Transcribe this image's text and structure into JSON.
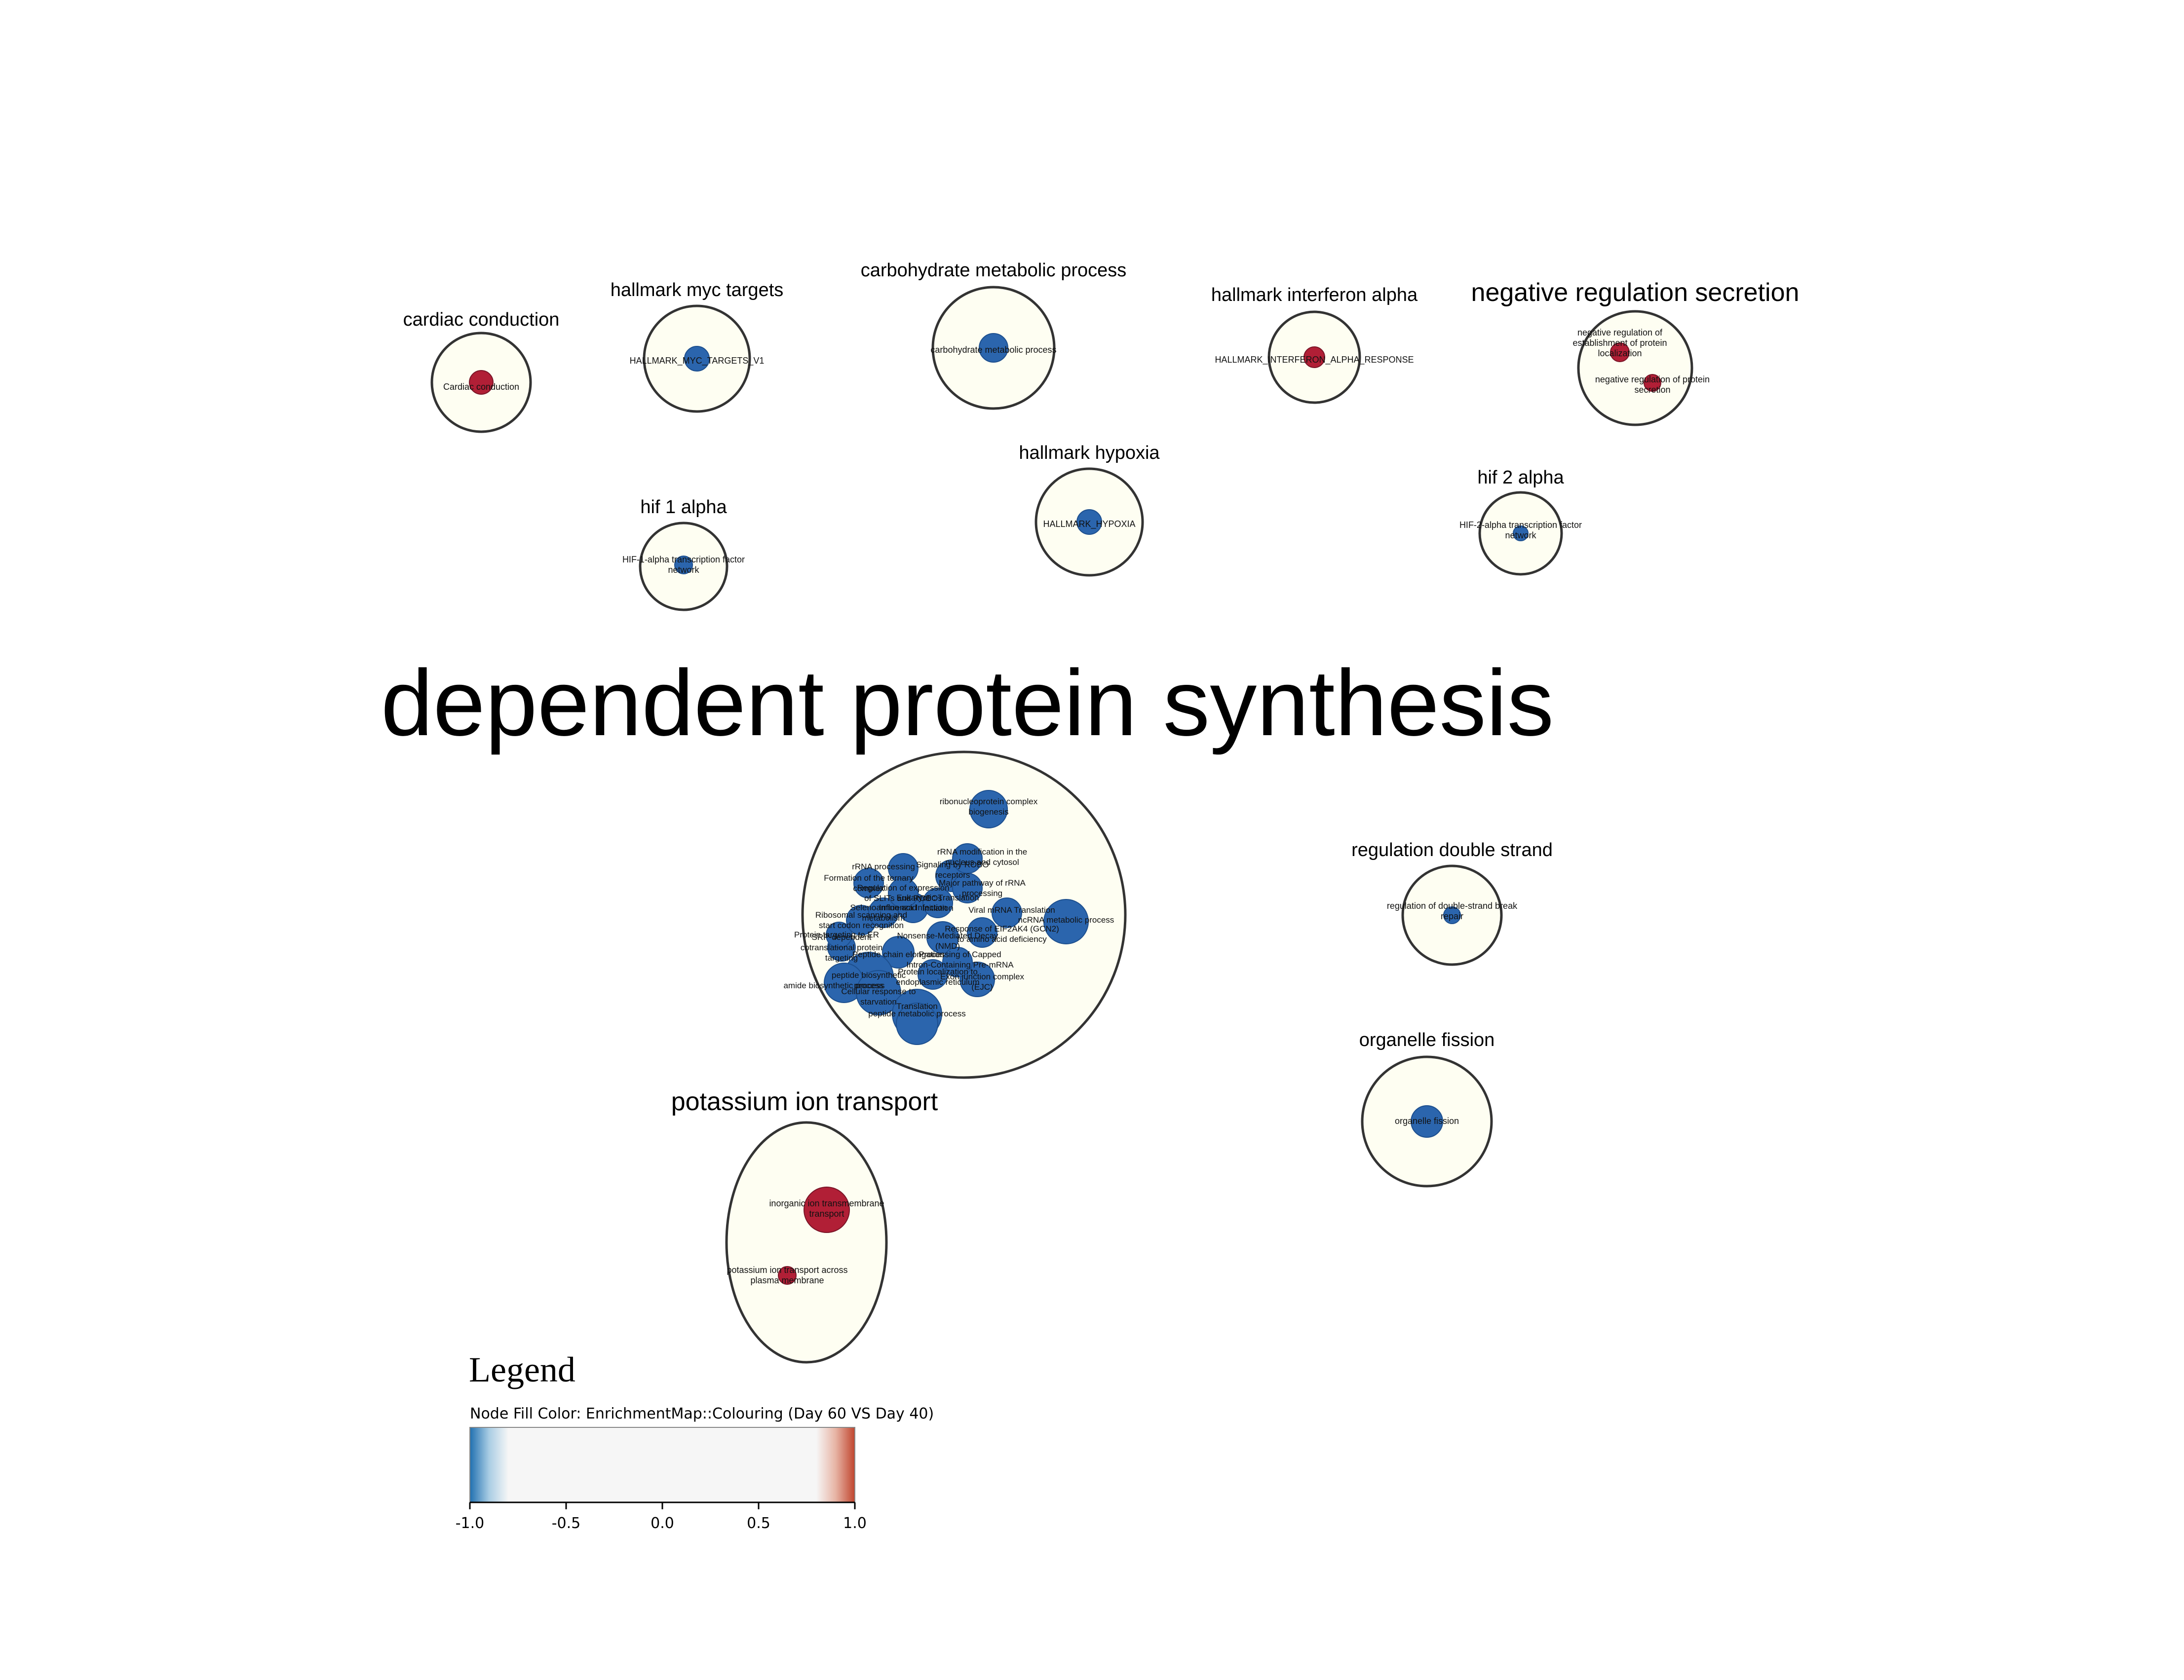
{
  "colors": {
    "cluster_fill": "#fefef2",
    "cluster_stroke": "#333333",
    "node_negative": "#2b65ad",
    "node_positive": "#b11f36",
    "edge": "#9fc3dc"
  },
  "clusters": [
    {
      "id": "cardiac",
      "title": "cardiac conduction",
      "nodes": [
        {
          "label": "Cardiac conduction",
          "sign": "positive"
        }
      ]
    },
    {
      "id": "myc",
      "title": "hallmark myc targets",
      "nodes": [
        {
          "label": "HALLMARK_MYC_TARGETS_V1",
          "sign": "negative"
        }
      ]
    },
    {
      "id": "carb",
      "title": "carbohydrate metabolic process",
      "nodes": [
        {
          "label": "carbohydrate metabolic process",
          "sign": "negative"
        }
      ]
    },
    {
      "id": "ifna",
      "title": "hallmark interferon alpha",
      "nodes": [
        {
          "label": "HALLMARK_INTERFERON_ALPHA_RESPONSE",
          "sign": "positive"
        }
      ]
    },
    {
      "id": "negsec",
      "title": "negative regulation secretion",
      "nodes": [
        {
          "label": "negative regulation of establishment of protein localization",
          "sign": "positive"
        },
        {
          "label": "negative regulation of protein secretion",
          "sign": "positive"
        }
      ]
    },
    {
      "id": "hif1",
      "title": "hif 1 alpha",
      "nodes": [
        {
          "label": "HIF-1-alpha transcription factor network",
          "sign": "negative"
        }
      ]
    },
    {
      "id": "hypoxia",
      "title": "hallmark hypoxia",
      "nodes": [
        {
          "label": "HALLMARK_HYPOXIA",
          "sign": "negative"
        }
      ]
    },
    {
      "id": "hif2",
      "title": "hif 2 alpha",
      "nodes": [
        {
          "label": "HIF-2-alpha transcription factor network",
          "sign": "negative"
        }
      ]
    },
    {
      "id": "protein",
      "title": "dependent protein synthesis",
      "nodes": [
        {
          "label": "ribonucleoprotein complex biogenesis",
          "sign": "negative"
        },
        {
          "label": "ncRNA metabolic process",
          "sign": "negative"
        },
        {
          "label": "rRNA processing",
          "sign": "negative"
        },
        {
          "label": "Signaling by ROBO receptors",
          "sign": "negative"
        },
        {
          "label": "Formation of the ternary complex",
          "sign": "negative"
        },
        {
          "label": "Major pathway of rRNA processing",
          "sign": "negative"
        },
        {
          "label": "Nonsense-Mediated Decay (NMD)",
          "sign": "negative"
        },
        {
          "label": "Peptide chain elongation",
          "sign": "negative"
        },
        {
          "label": "peptide biosynthetic process",
          "sign": "negative"
        },
        {
          "label": "amide biosynthetic process",
          "sign": "negative"
        },
        {
          "label": "Cellular response to starvation",
          "sign": "negative"
        },
        {
          "label": "Translation",
          "sign": "negative"
        },
        {
          "label": "peptide metabolic process",
          "sign": "negative"
        },
        {
          "label": "Exon junction complex (EJC)",
          "sign": "negative"
        },
        {
          "label": "SRP-dependent cotranslational protein targeting",
          "sign": "negative"
        },
        {
          "label": "Protein targeting to ER",
          "sign": "negative"
        },
        {
          "label": "Ribosomal scanning and start codon recognition",
          "sign": "negative"
        },
        {
          "label": "Selenoamino acid metabolism",
          "sign": "negative"
        },
        {
          "label": "Influenza Infection",
          "sign": "negative"
        },
        {
          "label": "Response of EIF2AK4 (GCN2) to amino acid deficiency",
          "sign": "negative"
        },
        {
          "label": "Eukaryotic Translation Initiation",
          "sign": "negative"
        },
        {
          "label": "Viral mRNA Translation",
          "sign": "negative"
        },
        {
          "label": "rRNA modification in the nucleus and cytosol",
          "sign": "negative"
        },
        {
          "label": "Regulation of expression of SLITs and ROBOs",
          "sign": "negative"
        },
        {
          "label": "Processing of Capped Intron-Containing Pre-mRNA",
          "sign": "negative"
        },
        {
          "label": "Protein localization to endoplasmic reticulum",
          "sign": "negative"
        }
      ]
    },
    {
      "id": "dsb",
      "title": "regulation double strand",
      "nodes": [
        {
          "label": "regulation of double-strand break repair",
          "sign": "negative"
        }
      ]
    },
    {
      "id": "fission",
      "title": "organelle fission",
      "nodes": [
        {
          "label": "organelle fission",
          "sign": "negative"
        }
      ]
    },
    {
      "id": "potassium",
      "title": "potassium ion transport",
      "nodes": [
        {
          "label": "inorganic ion transmembrane transport",
          "sign": "positive"
        },
        {
          "label": "potassium ion transport across plasma membrane",
          "sign": "positive"
        }
      ]
    }
  ],
  "legend": {
    "title": "Legend",
    "subtitle": "Node Fill Color:  EnrichmentMap::Colouring (Day 60 VS Day 40)",
    "ticks": [
      "-1.0",
      "-0.5",
      "0.0",
      "0.5",
      "1.0"
    ],
    "range": [
      -1.0,
      1.0
    ],
    "gradient": {
      "neg": "#2b7bb8",
      "neutral": "#f6f6f6",
      "pos": "#c4553a"
    }
  }
}
